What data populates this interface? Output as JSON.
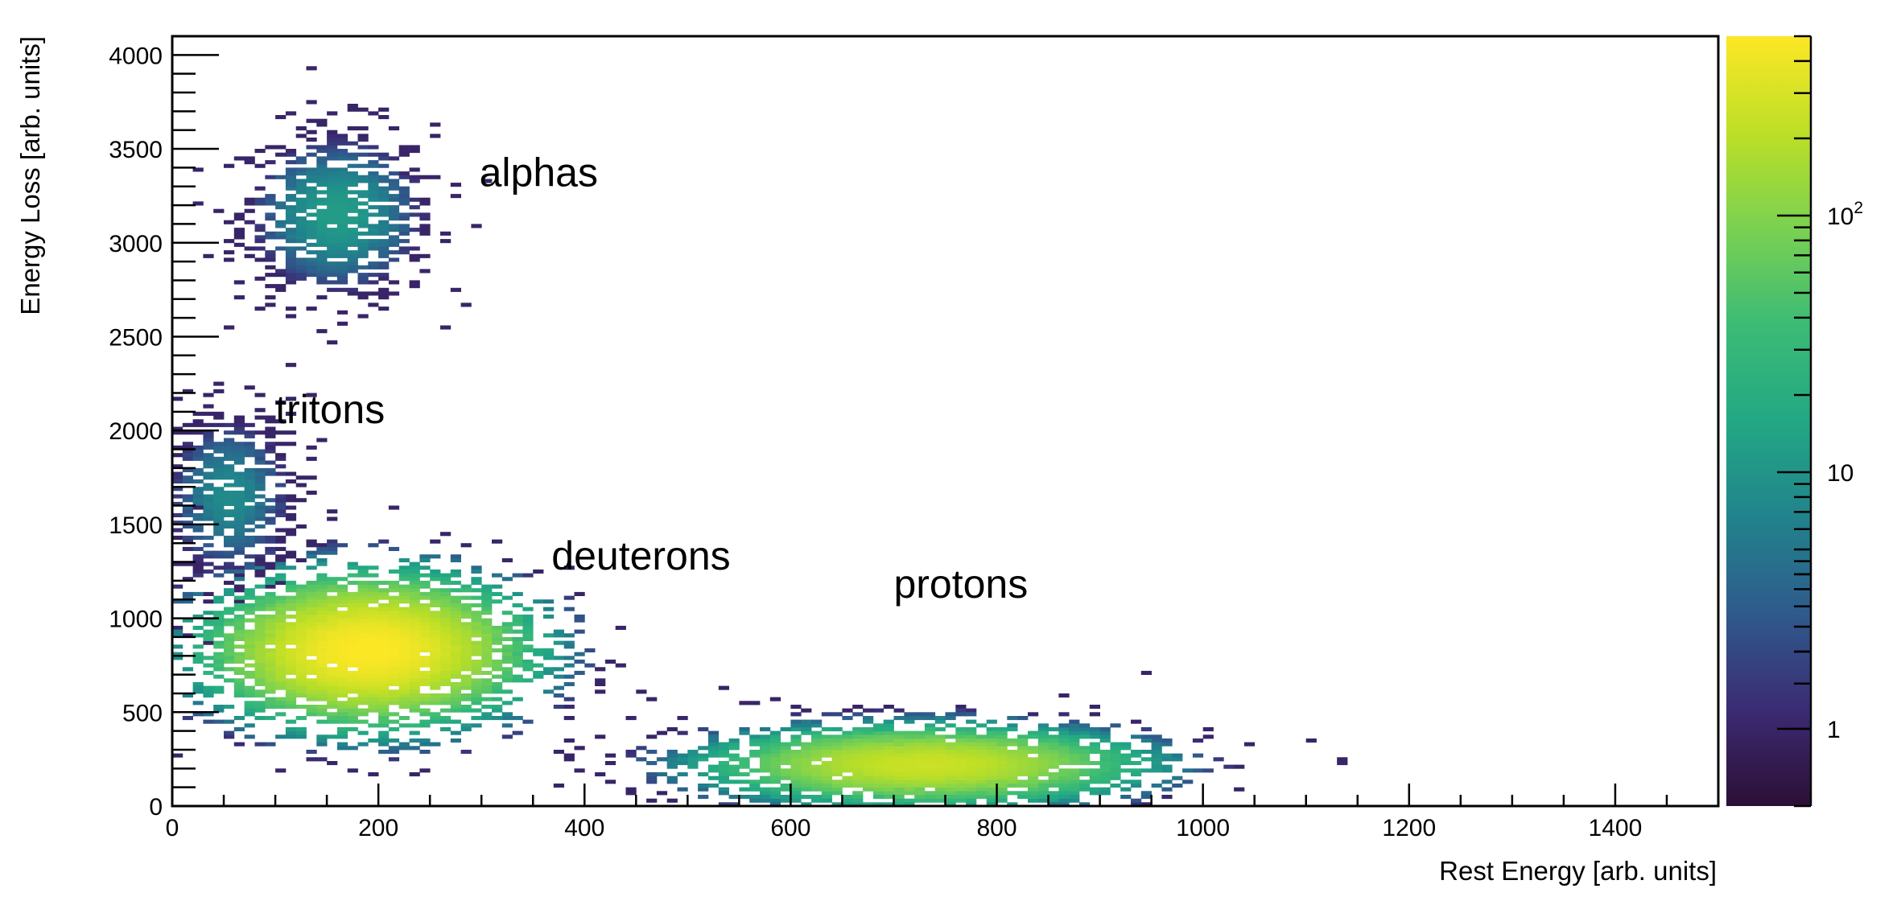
{
  "chart_data": {
    "type": "heatmap",
    "title": "",
    "xlabel": "Rest Energy [arb. units]",
    "ylabel": "Energy Loss [arb. units]",
    "xlim": [
      0,
      1500
    ],
    "ylim": [
      0,
      4100
    ],
    "x_ticks": [
      0,
      200,
      400,
      600,
      800,
      1000,
      1200,
      1400
    ],
    "y_ticks": [
      0,
      500,
      1000,
      1500,
      2000,
      2500,
      3000,
      3500,
      4000
    ],
    "z_scale": "log",
    "z_range": [
      0.5,
      500
    ],
    "z_ticks": [
      {
        "value": 1,
        "label": "1"
      },
      {
        "value": 10,
        "label": "10"
      },
      {
        "value": 100,
        "label": "10",
        "sup": "2"
      }
    ],
    "colormap": [
      "#2c0f35",
      "#3b2b73",
      "#2f5a8c",
      "#21838c",
      "#22a884",
      "#3cbb75",
      "#7ad151",
      "#bddf26",
      "#fde725"
    ],
    "grid": false,
    "clusters": [
      {
        "label": "alphas",
        "x": 160,
        "y": 3150,
        "sx": 38,
        "sy": 190,
        "peak": 12,
        "n": 700
      },
      {
        "label": "tritons",
        "x": 55,
        "y": 1650,
        "sx": 28,
        "sy": 200,
        "peak": 8,
        "n": 500
      },
      {
        "label": "deuterons",
        "x": 190,
        "y": 830,
        "sx": 65,
        "sy": 170,
        "peak": 500,
        "n": 2600
      },
      {
        "label": "protons",
        "x": 730,
        "y": 220,
        "sx": 90,
        "sy": 90,
        "peak": 250,
        "n": 2200
      }
    ],
    "annotations": [
      {
        "text": "alphas",
        "x": 298,
        "y": 3300
      },
      {
        "text": "tritons",
        "x": 100,
        "y": 2040
      },
      {
        "text": "deuterons",
        "x": 368,
        "y": 1260
      },
      {
        "text": "protons",
        "x": 700,
        "y": 1110
      }
    ]
  }
}
